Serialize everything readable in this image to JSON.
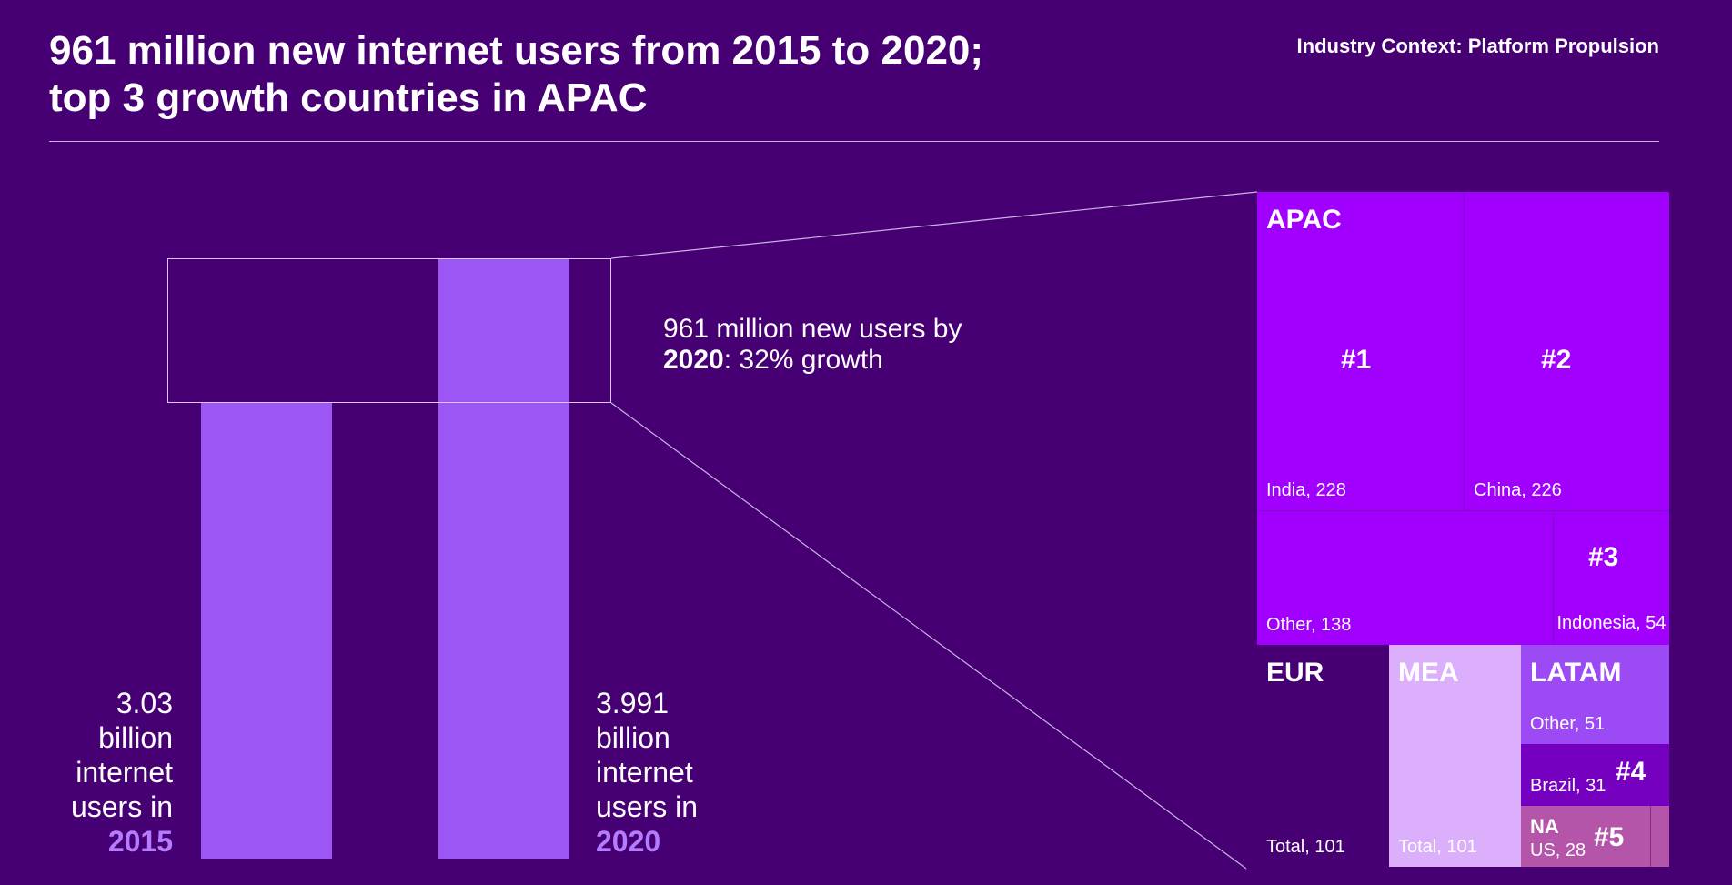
{
  "header": {
    "title": "961 million new internet users from 2015 to 2020; top 3 growth countries in APAC",
    "context": "Industry Context: Platform Propulsion"
  },
  "bars": {
    "left": {
      "line1": "3.03",
      "line2": "billion",
      "line3": "internet",
      "line4": "users in",
      "year": "2015"
    },
    "right": {
      "line1": "3.991",
      "line2": "billion",
      "line3": "internet",
      "line4": "users in",
      "year": "2020"
    }
  },
  "growth_note": {
    "prefix": "961 million new users by",
    "year": "2020",
    "suffix": ": 32% growth"
  },
  "treemap": {
    "apac_label": "APAC",
    "india": {
      "rank": "#1",
      "label": "India, 228"
    },
    "china": {
      "rank": "#2",
      "label": "China, 226"
    },
    "apac_other": {
      "label": "Other, 138"
    },
    "indonesia": {
      "rank": "#3",
      "label": "Indonesia, 54"
    },
    "eur": {
      "region": "EUR",
      "label": "Total, 101"
    },
    "mea": {
      "region": "MEA",
      "label": "Total, 101"
    },
    "latam_other": {
      "region": "LATAM",
      "label": "Other, 51"
    },
    "brazil": {
      "rank": "#4",
      "label": "Brazil, 31"
    },
    "us": {
      "region": "NA",
      "rank": "#5",
      "label": "US, 28"
    }
  },
  "colors": {
    "background": "#460073",
    "bar": "#9c56f4",
    "apac": "#a100ff",
    "mea": "#dcaffc",
    "latam": "#9c4af4",
    "brazil": "#7500c0",
    "na": "#b455aa"
  },
  "chart_data": [
    {
      "type": "bar",
      "categories": [
        "2015",
        "2020"
      ],
      "values": [
        3.03,
        3.991
      ],
      "ylabel": "billion internet users",
      "ylim": [
        0,
        3.991
      ]
    },
    {
      "type": "treemap",
      "unit": "million new users",
      "nodes": [
        {
          "region": "APAC",
          "name": "India",
          "value": 228,
          "rank": 1
        },
        {
          "region": "APAC",
          "name": "China",
          "value": 226,
          "rank": 2
        },
        {
          "region": "APAC",
          "name": "Other",
          "value": 138
        },
        {
          "region": "APAC",
          "name": "Indonesia",
          "value": 54,
          "rank": 3
        },
        {
          "region": "EUR",
          "name": "Total",
          "value": 101
        },
        {
          "region": "MEA",
          "name": "Total",
          "value": 101
        },
        {
          "region": "LATAM",
          "name": "Other",
          "value": 51
        },
        {
          "region": "LATAM",
          "name": "Brazil",
          "value": 31,
          "rank": 4
        },
        {
          "region": "NA",
          "name": "US",
          "value": 28,
          "rank": 5
        }
      ]
    }
  ]
}
